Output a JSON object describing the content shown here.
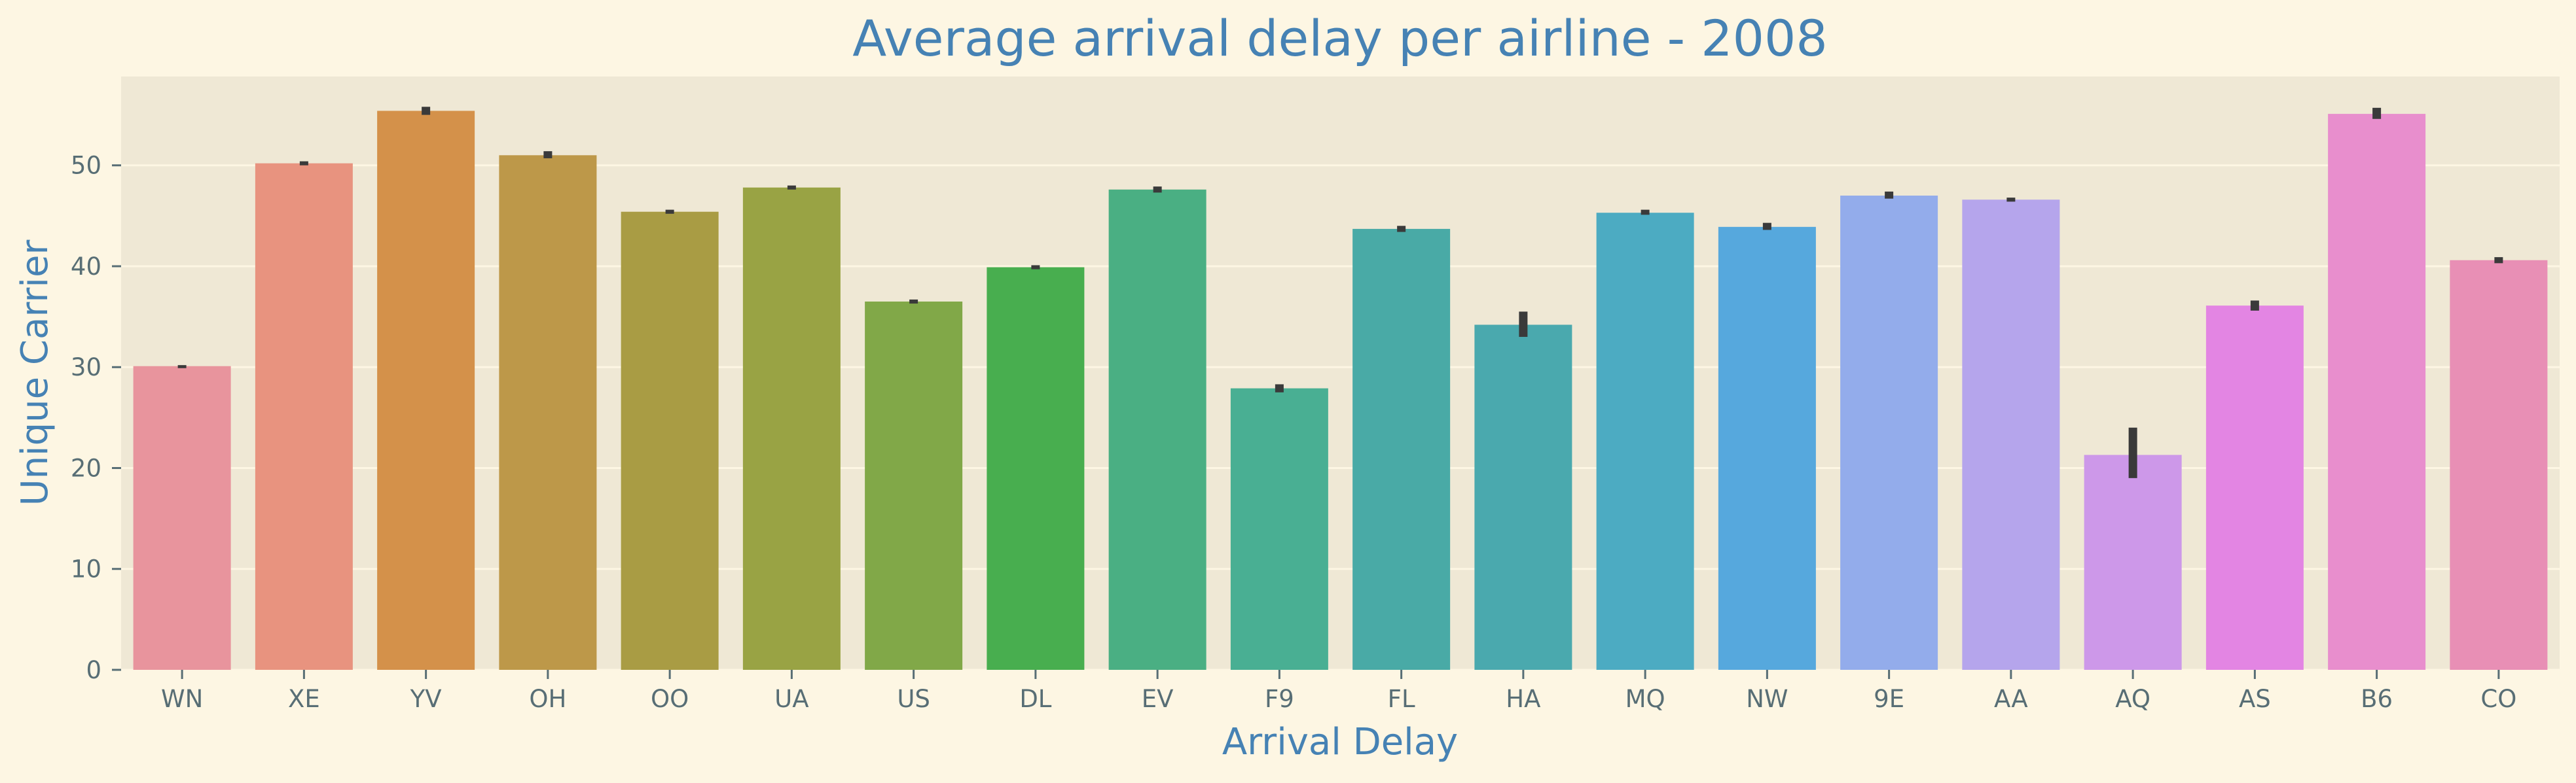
{
  "chart_data": {
    "type": "bar",
    "title": "Average arrival delay per airline - 2008",
    "xlabel": "Arrival Delay",
    "ylabel": "Unique Carrier",
    "ylim": [
      0,
      58.8
    ],
    "yticks": [
      0,
      10,
      20,
      30,
      40,
      50
    ],
    "grid": true,
    "categories": [
      "WN",
      "XE",
      "YV",
      "OH",
      "OO",
      "UA",
      "US",
      "DL",
      "EV",
      "F9",
      "FL",
      "HA",
      "MQ",
      "NW",
      "9E",
      "AA",
      "AQ",
      "AS",
      "B6",
      "CO"
    ],
    "values": [
      30.1,
      50.2,
      55.4,
      51.0,
      45.4,
      47.8,
      36.5,
      39.9,
      47.6,
      27.9,
      43.7,
      34.2,
      45.3,
      43.9,
      47.0,
      46.6,
      21.3,
      36.1,
      55.1,
      40.6
    ],
    "error_low": [
      29.9,
      50.0,
      55.0,
      50.7,
      45.2,
      47.6,
      36.3,
      39.7,
      47.3,
      27.5,
      43.4,
      33.0,
      45.1,
      43.6,
      46.7,
      46.4,
      19.0,
      35.6,
      54.6,
      40.3
    ],
    "error_high": [
      30.2,
      50.4,
      55.8,
      51.4,
      45.6,
      48.0,
      36.7,
      40.1,
      47.9,
      28.3,
      44.0,
      35.5,
      45.6,
      44.3,
      47.4,
      46.8,
      24.0,
      36.6,
      55.7,
      40.9
    ],
    "colors": [
      "#e8949d",
      "#e8937f",
      "#d4914a",
      "#bd9849",
      "#a99c44",
      "#99a344",
      "#81a848",
      "#48ae4f",
      "#4aaf83",
      "#49af93",
      "#49aaa6",
      "#4aa9ae",
      "#4cabc2",
      "#56a8dd",
      "#93aceb",
      "#b5a5ec",
      "#cd98e9",
      "#e385e3",
      "#e88ecd",
      "#e88fb5"
    ],
    "error_color": "#3a3a3a",
    "background_color": "#fdf6e3",
    "plot_background_color": "#efe8d5",
    "text_color": "#4682b4",
    "tick_color": "#586e75"
  }
}
